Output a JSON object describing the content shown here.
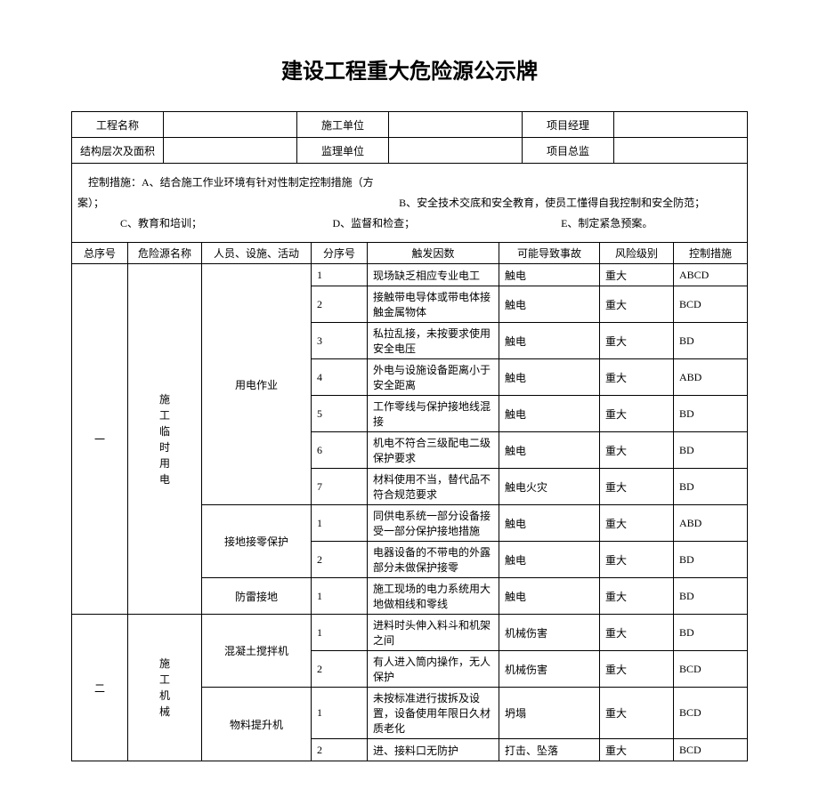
{
  "title": "建设工程重大危险源公示牌",
  "info": {
    "labels": {
      "project": "工程名称",
      "contractor": "施工单位",
      "pm": "项目经理",
      "structure": "结构层次及面积",
      "supervisor": "监理单位",
      "chief": "项目总监"
    },
    "values": {
      "project": "",
      "contractor": "",
      "pm": "",
      "structure": "",
      "supervisor": "",
      "chief": ""
    }
  },
  "measures": {
    "lead": "控制措施：",
    "a": "A、结合施工作业环境有针对性制定控制措施（方案）；",
    "b": "B、安全技术交底和安全教育，使员工懂得自我控制和安全防范；",
    "c": "C、教育和培训；",
    "d": "D、监督和检查；",
    "e": "E、制定紧急预案。"
  },
  "headers": {
    "seq": "总序号",
    "source": "危险源名称",
    "activity": "人员、设施、活动",
    "sub": "分序号",
    "cause": "触发因数",
    "accident": "可能导致事故",
    "risk": "风险级别",
    "control": "控制措施"
  },
  "sections": [
    {
      "seq": "一",
      "source_vert": "施\n工\n临\n时\n用\n电",
      "groups": [
        {
          "activity": "用电作业",
          "rows": [
            {
              "sub": "1",
              "cause": "现场缺乏相应专业电工",
              "accident": "触电",
              "risk": "重大",
              "control": "ABCD"
            },
            {
              "sub": "2",
              "cause": "接触带电导体或带电体接触金属物体",
              "accident": "触电",
              "risk": "重大",
              "control": "BCD"
            },
            {
              "sub": "3",
              "cause": "私拉乱接，未按要求使用安全电压",
              "accident": "触电",
              "risk": "重大",
              "control": "BD"
            },
            {
              "sub": "4",
              "cause": "外电与设施设备距离小于安全距离",
              "accident": "触电",
              "risk": "重大",
              "control": "ABD"
            },
            {
              "sub": "5",
              "cause": "工作零线与保护接地线混接",
              "accident": "触电",
              "risk": "重大",
              "control": "BD"
            },
            {
              "sub": "6",
              "cause": "机电不符合三级配电二级保护要求",
              "accident": "触电",
              "risk": "重大",
              "control": "BD"
            },
            {
              "sub": "7",
              "cause": "材料使用不当，替代品不符合规范要求",
              "accident": "触电火灾",
              "risk": "重大",
              "control": "BD"
            }
          ]
        },
        {
          "activity": "接地接零保护",
          "rows": [
            {
              "sub": "1",
              "cause": "同供电系统一部分设备接受一部分保护接地措施",
              "accident": "触电",
              "risk": "重大",
              "control": "ABD"
            },
            {
              "sub": "2",
              "cause": "电器设备的不带电的外露部分未做保护接零",
              "accident": "触电",
              "risk": "重大",
              "control": "BD"
            }
          ]
        },
        {
          "activity": "防雷接地",
          "rows": [
            {
              "sub": "1",
              "cause": "施工现场的电力系统用大地做相线和零线",
              "accident": "触电",
              "risk": "重大",
              "control": "BD"
            }
          ]
        }
      ]
    },
    {
      "seq": "二",
      "source_vert": "施\n工\n机\n械",
      "groups": [
        {
          "activity": "混凝土搅拌机",
          "rows": [
            {
              "sub": "1",
              "cause": "进料时头伸入料斗和机架之间",
              "accident": "机械伤害",
              "risk": "重大",
              "control": "BD"
            },
            {
              "sub": "2",
              "cause": "有人进入筒内操作，无人保护",
              "accident": "机械伤害",
              "risk": "重大",
              "control": "BCD"
            }
          ]
        },
        {
          "activity": "物料提升机",
          "rows": [
            {
              "sub": "1",
              "cause": "未按标准进行拔拆及设置，设备使用年限日久材质老化",
              "accident": "坍塌",
              "risk": "重大",
              "control": "BCD"
            },
            {
              "sub": "2",
              "cause": "进、接料口无防护",
              "accident": "打击、坠落",
              "risk": "重大",
              "control": "BCD"
            }
          ]
        }
      ]
    }
  ]
}
